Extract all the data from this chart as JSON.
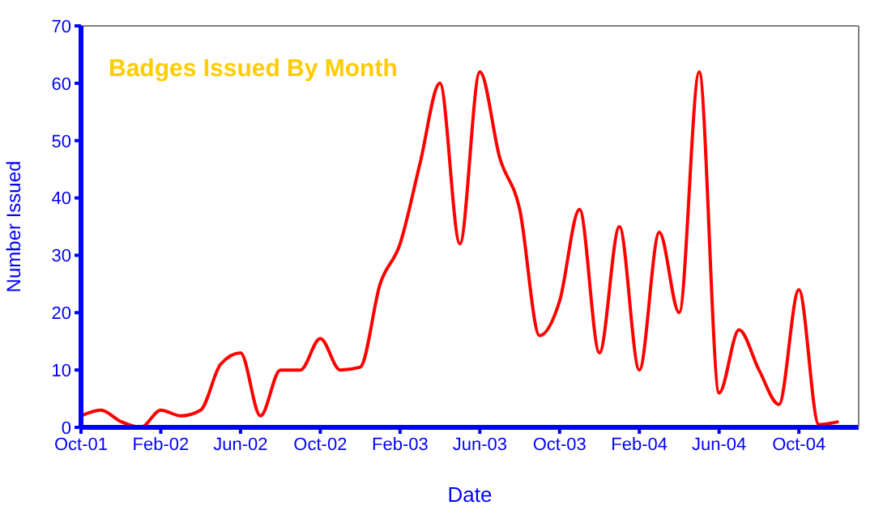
{
  "chart_data": {
    "type": "line",
    "title": "Badges Issued By Month",
    "xlabel": "Date",
    "ylabel": "Number Issued",
    "x": [
      "2001-10",
      "2001-11",
      "2001-12",
      "2002-01",
      "2002-02",
      "2002-03",
      "2002-04",
      "2002-05",
      "2002-06",
      "2002-07",
      "2002-08",
      "2002-09",
      "2002-10",
      "2002-11",
      "2002-12",
      "2003-01",
      "2003-02",
      "2003-03",
      "2003-04",
      "2003-05",
      "2003-06",
      "2003-07",
      "2003-08",
      "2003-09",
      "2003-10",
      "2003-11",
      "2003-12",
      "2004-01",
      "2004-02",
      "2004-03",
      "2004-04",
      "2004-05",
      "2004-06",
      "2004-07",
      "2004-08",
      "2004-09",
      "2004-10",
      "2004-11",
      "2004-12"
    ],
    "series": [
      {
        "color": "#ff0000",
        "values": [
          2,
          3,
          1,
          0,
          3,
          2,
          3,
          11,
          13,
          2,
          10,
          10,
          15.5,
          10,
          10.5,
          25,
          32,
          46,
          60,
          32,
          62,
          47,
          38,
          16,
          22,
          38,
          13,
          35,
          10,
          34,
          20,
          62,
          6,
          17,
          10,
          4,
          24,
          0.5,
          1
        ]
      }
    ],
    "xlim": [
      "2001-10",
      "2005-01"
    ],
    "xticks": [
      {
        "value": "2001-10",
        "label": "Oct-01"
      },
      {
        "value": "2002-02",
        "label": "Feb-02"
      },
      {
        "value": "2002-06",
        "label": "Jun-02"
      },
      {
        "value": "2002-10",
        "label": "Oct-02"
      },
      {
        "value": "2003-02",
        "label": "Feb-03"
      },
      {
        "value": "2003-06",
        "label": "Jun-03"
      },
      {
        "value": "2003-10",
        "label": "Oct-03"
      },
      {
        "value": "2004-02",
        "label": "Feb-04"
      },
      {
        "value": "2004-06",
        "label": "Jun-04"
      },
      {
        "value": "2004-10",
        "label": "Oct-04"
      }
    ],
    "ylim": [
      0,
      70
    ],
    "yticks": [
      0,
      10,
      20,
      30,
      40,
      50,
      60,
      70
    ],
    "grid": false,
    "marker": "none",
    "line_style": "solid"
  }
}
